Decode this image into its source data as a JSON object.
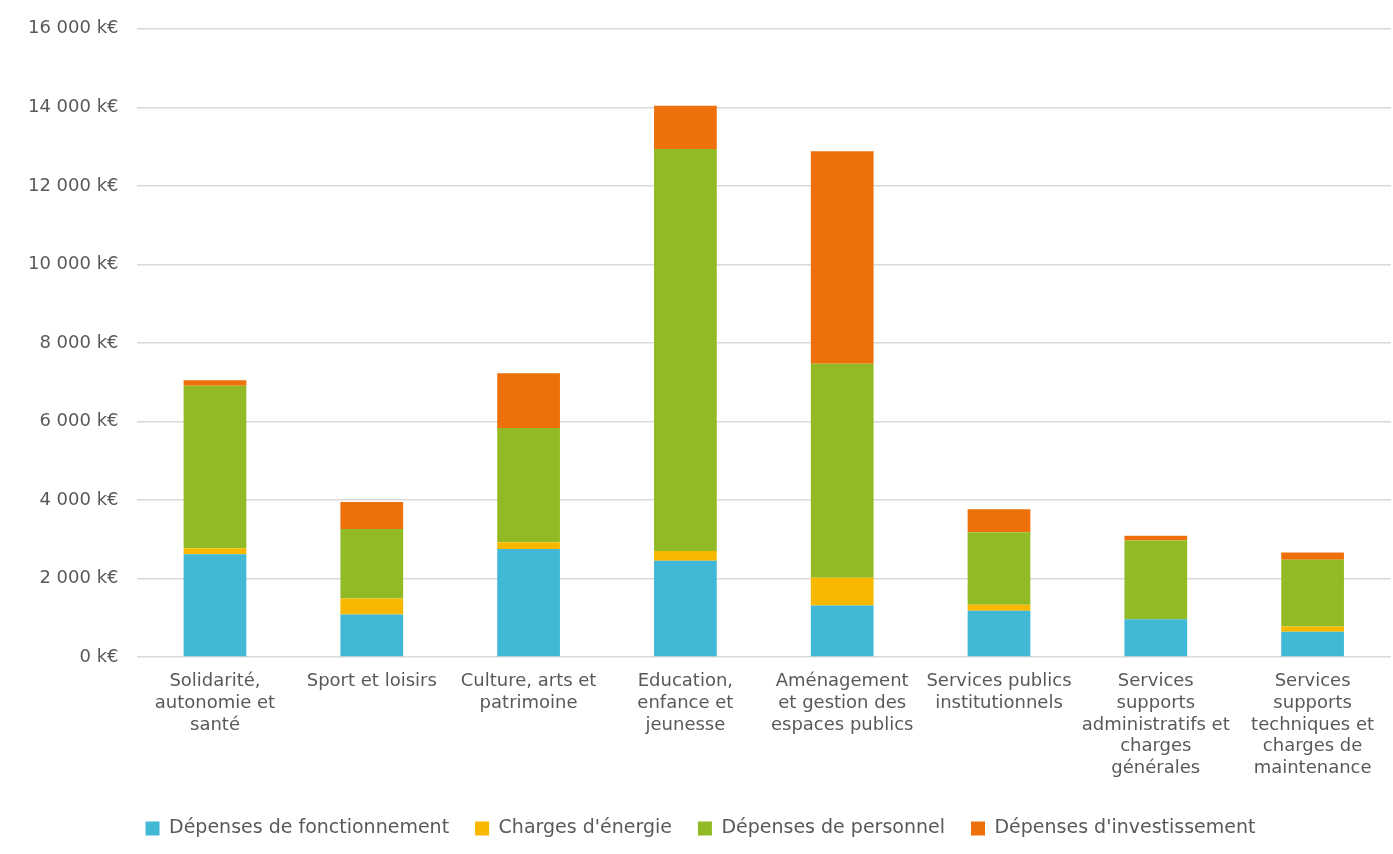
{
  "chart_data": {
    "type": "bar",
    "stacked": true,
    "categories": [
      "Solidarité, autonomie et santé",
      "Sport et loisirs",
      "Culture, arts et patrimoine",
      "Education, enfance et jeunesse",
      "Aménagement et gestion des espaces publics",
      "Services publics institutionnels",
      "Services supports administratifs et charges générales",
      "Services supports techniques et charges de maintenance"
    ],
    "series": [
      {
        "name": "Dépenses de fonctionnement",
        "color": "#41b8d5",
        "values": [
          2620,
          1080,
          2750,
          2450,
          1310,
          1180,
          960,
          640
        ]
      },
      {
        "name": "Charges d'énergie",
        "color": "#f9b800",
        "values": [
          150,
          410,
          170,
          250,
          710,
          150,
          0,
          140
        ]
      },
      {
        "name": "Dépenses de personnel",
        "color": "#91ba24",
        "values": [
          4140,
          1770,
          2910,
          10240,
          5450,
          1850,
          2010,
          1700
        ]
      },
      {
        "name": "Dépenses d'investissement",
        "color": "#ee700b",
        "values": [
          140,
          690,
          1400,
          1100,
          5410,
          580,
          120,
          180
        ]
      }
    ],
    "ylim": [
      0,
      16000
    ],
    "yticks": [
      {
        "value": 0,
        "label": "0 k€"
      },
      {
        "value": 2000,
        "label": "2 000 k€"
      },
      {
        "value": 4000,
        "label": "4 000 k€"
      },
      {
        "value": 6000,
        "label": "6 000 k€"
      },
      {
        "value": 8000,
        "label": "8 000 k€"
      },
      {
        "value": 10000,
        "label": "10 000 k€"
      },
      {
        "value": 12000,
        "label": "12 000 k€"
      },
      {
        "value": 14000,
        "label": "14 000 k€"
      },
      {
        "value": 16000,
        "label": "16 000 k€"
      }
    ],
    "grid": "y",
    "legend": "bottom"
  }
}
